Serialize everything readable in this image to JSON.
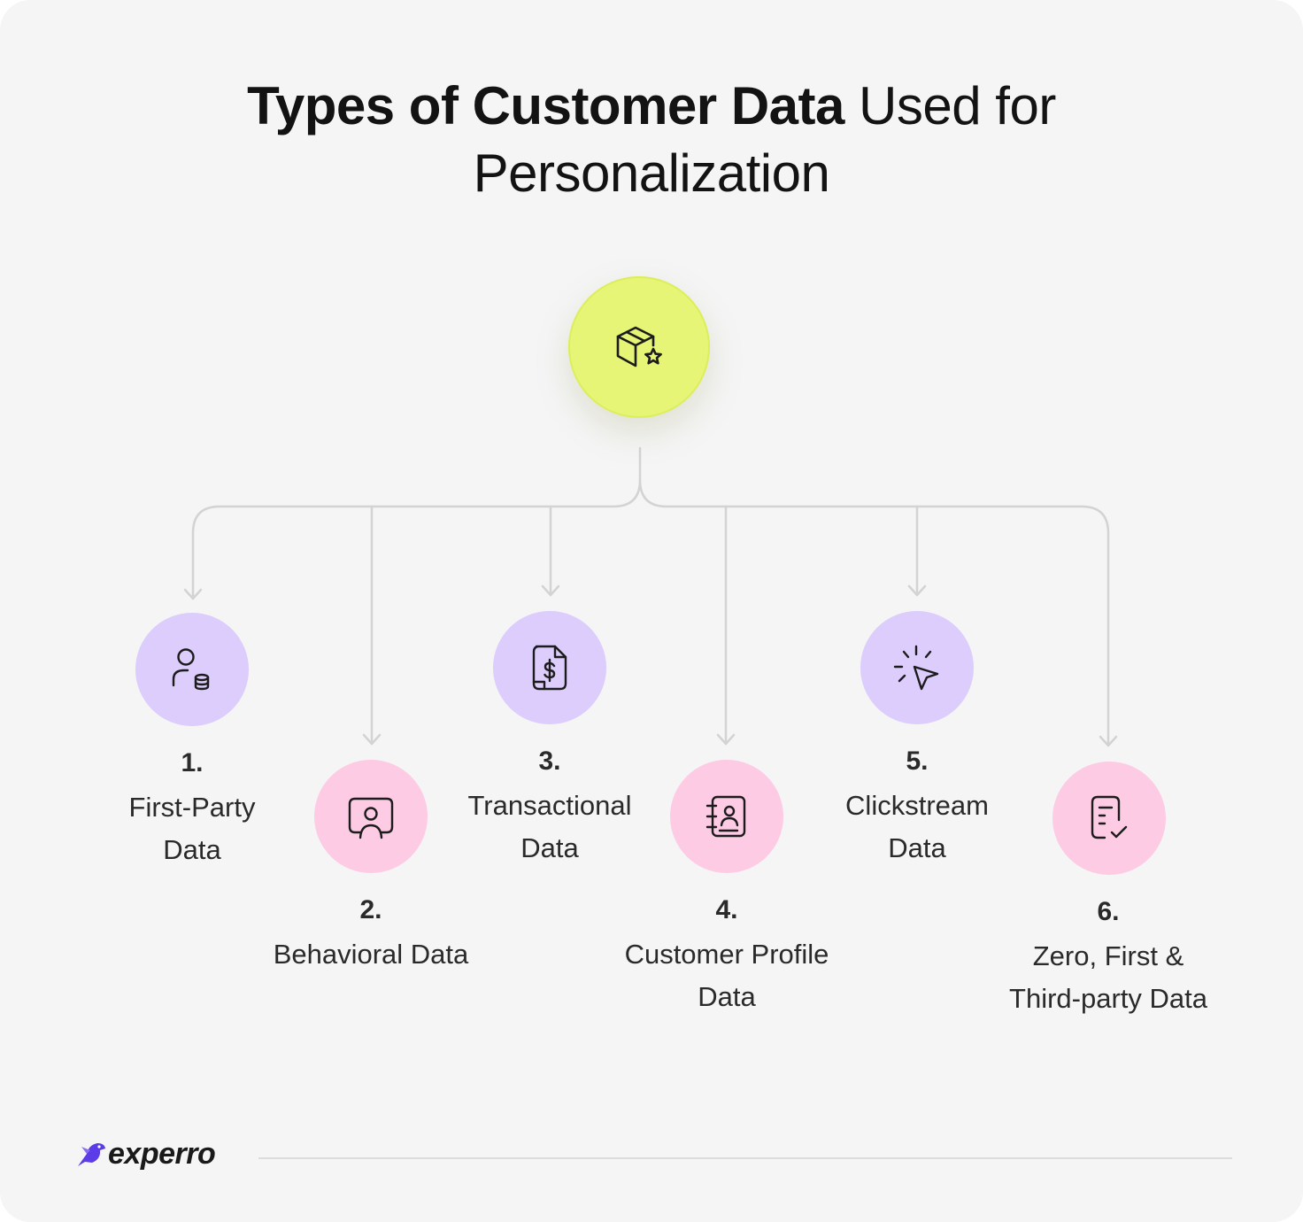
{
  "title": {
    "bold": "Types of Customer Data",
    "light_line1": " Used for",
    "light_line2": "Personalization"
  },
  "hub": {
    "icon": "box-star-icon",
    "color": "#e7f577"
  },
  "nodes": [
    {
      "number": "1.",
      "label_line1": "First-Party",
      "label_line2": "Data",
      "icon": "user-database-icon",
      "color": "#dccdfc"
    },
    {
      "number": "2.",
      "label_line1": "Behavioral Data",
      "label_line2": "",
      "icon": "user-frame-icon",
      "color": "#fdcbe3"
    },
    {
      "number": "3.",
      "label_line1": "Transactional",
      "label_line2": "Data",
      "icon": "invoice-dollar-icon",
      "color": "#dccdfc"
    },
    {
      "number": "4.",
      "label_line1": "Customer Profile",
      "label_line2": "Data",
      "icon": "contact-book-icon",
      "color": "#fdcbe3"
    },
    {
      "number": "5.",
      "label_line1": "Clickstream",
      "label_line2": "Data",
      "icon": "cursor-click-icon",
      "color": "#dccdfc"
    },
    {
      "number": "6.",
      "label_line1": "Zero, First &",
      "label_line2": "Third-party Data",
      "icon": "document-check-icon",
      "color": "#fdcbe3"
    }
  ],
  "brand": {
    "name": "experro",
    "icon": "bird-logo-icon",
    "accent": "#5b3ce8"
  }
}
